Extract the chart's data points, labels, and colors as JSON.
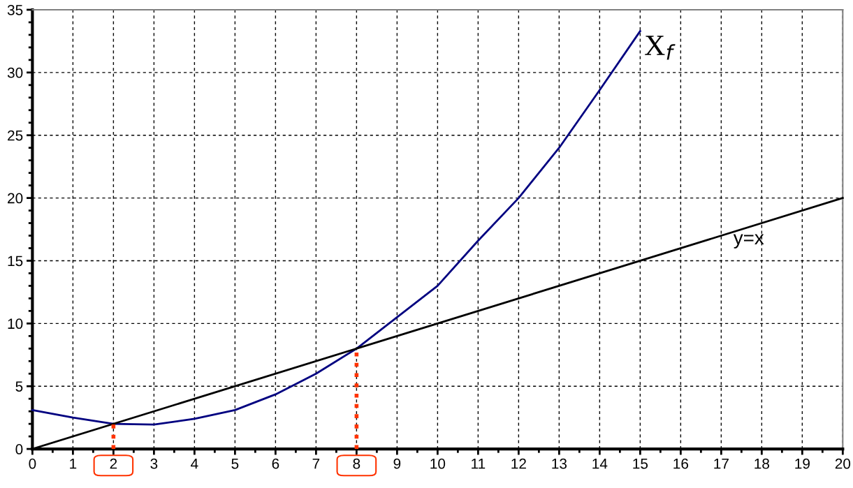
{
  "chart_data": {
    "type": "line",
    "xlim": [
      0,
      20
    ],
    "xticks": [
      0,
      1,
      2,
      3,
      4,
      5,
      6,
      7,
      8,
      9,
      10,
      11,
      12,
      13,
      14,
      15,
      16,
      17,
      18,
      19,
      20
    ],
    "ylim": [
      0,
      35
    ],
    "yticks": [
      0,
      5,
      10,
      15,
      20,
      25,
      30,
      35
    ],
    "grid": true,
    "marker": "none",
    "series": [
      {
        "name": "X$_{f}$",
        "color": "#000080",
        "line_style": "solid",
        "x": [
          0,
          1,
          2,
          3,
          4,
          5,
          6,
          7,
          8,
          9,
          10,
          11,
          12,
          13,
          14,
          15
        ],
        "values": [
          3.1,
          2.5,
          2.0,
          1.95,
          2.4,
          3.1,
          4.35,
          6.0,
          8.0,
          10.5,
          13.0,
          16.6,
          20.0,
          24.0,
          28.6,
          33.3
        ]
      },
      {
        "name": "y=x",
        "color": "#000000",
        "line_style": "solid",
        "x": [
          0,
          20
        ],
        "values": [
          0,
          20
        ]
      },
      {
        "color": "#ff3300",
        "line_style": "dotted",
        "x": [
          2,
          2
        ],
        "values": [
          0,
          2
        ]
      },
      {
        "color": "#ff3300",
        "line_style": "dotted",
        "x": [
          8,
          8
        ],
        "values": [
          0,
          8
        ]
      }
    ]
  }
}
